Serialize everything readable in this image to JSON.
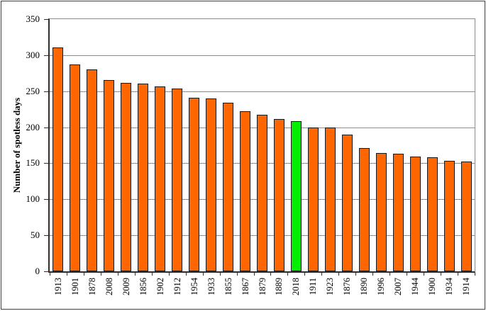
{
  "chart_data": {
    "type": "bar",
    "title": "",
    "xlabel": "",
    "ylabel": "Number of spotless days",
    "ylim": [
      0,
      350
    ],
    "yticks": [
      0,
      50,
      100,
      150,
      200,
      250,
      300,
      350
    ],
    "grid": "horizontal gridlines at every y tick",
    "legend": "none",
    "categories": [
      "1913",
      "1901",
      "1878",
      "2008",
      "2009",
      "1856",
      "1902",
      "1912",
      "1954",
      "1933",
      "1855",
      "1867",
      "1879",
      "1889",
      "2018",
      "1911",
      "1923",
      "1876",
      "1890",
      "1996",
      "2007",
      "1944",
      "1900",
      "1934",
      "1914"
    ],
    "values": [
      311,
      287,
      280,
      265,
      262,
      261,
      257,
      254,
      241,
      240,
      234,
      222,
      217,
      211,
      208,
      200,
      200,
      190,
      171,
      164,
      163,
      159,
      158,
      153,
      152
    ],
    "highlight_category": "2018",
    "colors": {
      "bar_fill": "#FF6600",
      "highlight_fill": "#00EE00",
      "bar_outline": "#1A1A1A",
      "gridline": "#8C8C8C",
      "axis": "#2E2E2E",
      "text": "#000000",
      "background": "#FFFFFF"
    }
  }
}
